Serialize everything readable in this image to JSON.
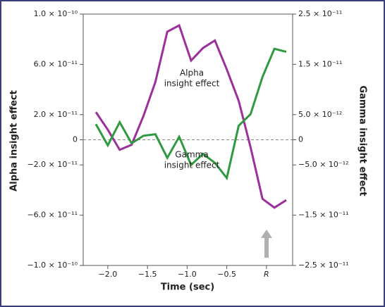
{
  "chart_data": {
    "type": "line",
    "xlabel": "Time (sec)",
    "ylabel": "Alpha insight effect",
    "y2label": "Gamma insight effect",
    "x": [
      -2.15,
      -2.0,
      -1.85,
      -1.7,
      -1.55,
      -1.4,
      -1.25,
      -1.1,
      -0.95,
      -0.8,
      -0.65,
      -0.5,
      -0.35,
      -0.2,
      -0.05,
      0.1,
      0.25
    ],
    "series": [
      {
        "name": "Alpha insight effect",
        "color": "#9b2f9b",
        "axis": "y",
        "values": [
          2.2e-11,
          8e-12,
          -8e-12,
          -4e-12,
          1.9e-11,
          4.6e-11,
          8.6e-11,
          9.1e-11,
          6.3e-11,
          7.3e-11,
          7.9e-11,
          5.6e-11,
          3.1e-11,
          -6e-12,
          -4.7e-11,
          -5.4e-11,
          -4.8e-11
        ]
      },
      {
        "name": "Gamma insight effect",
        "color": "#2f9a3f",
        "axis": "y2",
        "values": [
          3.1e-12,
          -1.1e-12,
          3.5e-12,
          -7e-13,
          8e-13,
          1.1e-12,
          -3.6e-12,
          6e-13,
          -5e-12,
          -2.8e-12,
          -4.6e-12,
          -7.6e-12,
          2.8e-12,
          5.1e-12,
          1.25e-11,
          1.81e-11,
          1.75e-11
        ]
      }
    ],
    "annotations": [
      {
        "lines": [
          "Alpha",
          "insight effect"
        ],
        "series": 0
      },
      {
        "lines": [
          "Gamma",
          "insight effect"
        ],
        "series": 1
      }
    ],
    "xlim": [
      -2.31,
      0.33
    ],
    "xticks": [
      {
        "value": -2.0,
        "label": "−2.0"
      },
      {
        "value": -1.5,
        "label": "−1.5"
      },
      {
        "value": -1.0,
        "label": "−1.0"
      },
      {
        "value": -0.5,
        "label": "−0.5"
      },
      {
        "value": 0,
        "label": "R"
      }
    ],
    "ylim": [
      -1e-10,
      1e-10
    ],
    "yticks": [
      {
        "value": 1e-10,
        "label": "1.0 × 10⁻¹⁰"
      },
      {
        "value": 6e-11,
        "label": "6.0 × 10⁻¹¹"
      },
      {
        "value": 2e-11,
        "label": "2.0 × 10⁻¹¹"
      },
      0,
      {
        "value": -2e-11,
        "label": "−2.0 × 10⁻¹¹"
      },
      {
        "value": -6e-11,
        "label": "−6.0 × 10⁻¹¹"
      },
      {
        "value": -1e-10,
        "label": "−1.0 × 10⁻¹⁰"
      }
    ],
    "y2lim": [
      -2.5e-11,
      2.5e-11
    ],
    "y2ticks": [
      {
        "value": 2.5e-11,
        "label": "2.5 × 10⁻¹¹"
      },
      {
        "value": 1.5e-11,
        "label": "1.5 × 10⁻¹¹"
      },
      {
        "value": 5e-12,
        "label": "5.0 × 10⁻¹²"
      },
      0,
      {
        "value": -5e-12,
        "label": "−5.0 × 10⁻¹²"
      },
      {
        "value": -1.5e-11,
        "label": "−1.5 × 10⁻¹¹"
      },
      {
        "value": -2.5e-11,
        "label": "−2.5 × 10⁻¹¹"
      }
    ]
  }
}
